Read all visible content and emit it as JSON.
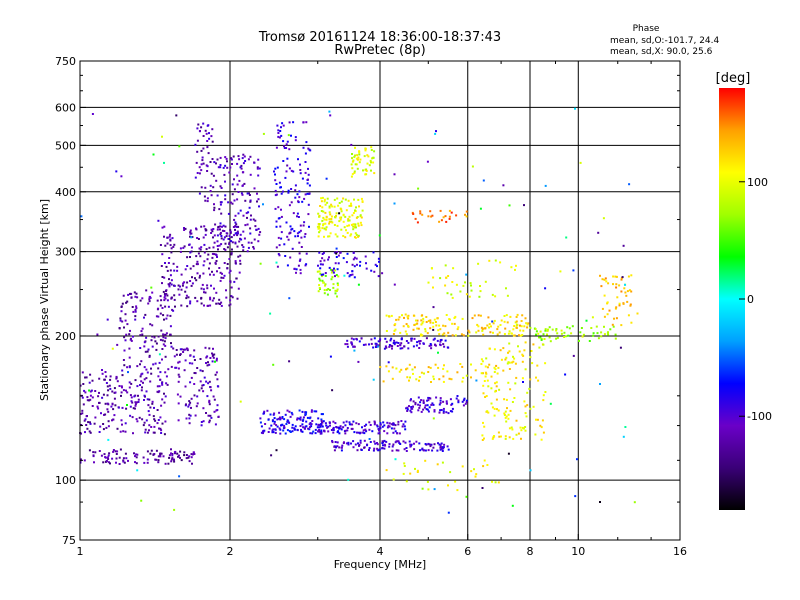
{
  "chart_data": {
    "type": "scatter",
    "title": "Tromsø 20161124 18:36:00-18:37:43",
    "subtitle": "RwPretec (8p)",
    "xlabel": "Frequency [MHz]",
    "ylabel": "Stationary phase Virtual Height [km]",
    "x_scale": "log",
    "y_scale": "log",
    "xlim": [
      1,
      16
    ],
    "ylim": [
      75,
      750
    ],
    "x_ticks": [
      1,
      2,
      4,
      6,
      8,
      10,
      16
    ],
    "x_tick_labels": [
      "1",
      "2",
      "4",
      "6",
      "8",
      "10",
      "16"
    ],
    "y_ticks": [
      75,
      100,
      200,
      300,
      400,
      500,
      600,
      750
    ],
    "y_tick_labels": [
      "75",
      "100",
      "200",
      "300",
      "400",
      "500",
      "600",
      "750"
    ],
    "grid": true,
    "stats": {
      "title": "Phase",
      "line1": "mean, sd,O:-101.7, 24.4",
      "line2": "mean, sd,X:  90.0, 25.6"
    },
    "colorbar": {
      "label": "[deg]",
      "range": [
        -180,
        180
      ],
      "ticks": [
        100,
        0,
        -100
      ],
      "tick_labels": [
        "100",
        "0",
        "-100"
      ],
      "colors": [
        "#000000",
        "#3a0078",
        "#6a00c8",
        "#0000ff",
        "#00a0ff",
        "#00ffff",
        "#00ff00",
        "#a0ff00",
        "#ffff00",
        "#ffa000",
        "#ff0000"
      ]
    },
    "clusters": [
      {
        "x0": 1.0,
        "x1": 1.7,
        "y0": 108,
        "y1": 116,
        "phase": -125,
        "count": 110
      },
      {
        "x0": 1.0,
        "x1": 1.5,
        "y0": 125,
        "y1": 170,
        "phase": -118,
        "count": 220
      },
      {
        "x0": 1.2,
        "x1": 1.55,
        "y0": 170,
        "y1": 250,
        "phase": -120,
        "count": 140
      },
      {
        "x0": 1.45,
        "x1": 2.1,
        "y0": 230,
        "y1": 340,
        "phase": -120,
        "count": 260
      },
      {
        "x0": 1.55,
        "x1": 1.9,
        "y0": 130,
        "y1": 190,
        "phase": -115,
        "count": 120
      },
      {
        "x0": 1.7,
        "x1": 1.85,
        "y0": 380,
        "y1": 560,
        "phase": -115,
        "count": 50
      },
      {
        "x0": 1.85,
        "x1": 2.3,
        "y0": 300,
        "y1": 480,
        "phase": -110,
        "count": 160
      },
      {
        "x0": 2.45,
        "x1": 2.9,
        "y0": 270,
        "y1": 560,
        "phase": -95,
        "count": 150
      },
      {
        "x0": 2.3,
        "x1": 3.1,
        "y0": 125,
        "y1": 140,
        "phase": -85,
        "count": 140
      },
      {
        "x0": 3.0,
        "x1": 4.5,
        "y0": 125,
        "y1": 133,
        "phase": -95,
        "count": 120
      },
      {
        "x0": 3.2,
        "x1": 5.5,
        "y0": 115,
        "y1": 121,
        "phase": -100,
        "count": 120
      },
      {
        "x0": 3.0,
        "x1": 3.7,
        "y0": 320,
        "y1": 390,
        "phase": 100,
        "count": 140
      },
      {
        "x0": 3.5,
        "x1": 3.9,
        "y0": 430,
        "y1": 500,
        "phase": 95,
        "count": 50
      },
      {
        "x0": 3.0,
        "x1": 3.3,
        "y0": 240,
        "y1": 275,
        "phase": 75,
        "count": 40
      },
      {
        "x0": 3.0,
        "x1": 4.0,
        "y0": 265,
        "y1": 300,
        "phase": -90,
        "count": 60
      },
      {
        "x0": 3.4,
        "x1": 5.5,
        "y0": 188,
        "y1": 198,
        "phase": -100,
        "count": 100
      },
      {
        "x0": 4.1,
        "x1": 8.0,
        "y0": 200,
        "y1": 222,
        "phase": 120,
        "count": 160
      },
      {
        "x0": 4.5,
        "x1": 6.0,
        "y0": 138,
        "y1": 150,
        "phase": -95,
        "count": 80
      },
      {
        "x0": 6.4,
        "x1": 8.6,
        "y0": 120,
        "y1": 195,
        "phase": 110,
        "count": 140
      },
      {
        "x0": 8.0,
        "x1": 12.0,
        "y0": 195,
        "y1": 210,
        "phase": 75,
        "count": 60
      },
      {
        "x0": 11.0,
        "x1": 13.2,
        "y0": 210,
        "y1": 270,
        "phase": 130,
        "count": 50
      },
      {
        "x0": 4.5,
        "x1": 6.0,
        "y0": 345,
        "y1": 365,
        "phase": 150,
        "count": 25
      },
      {
        "x0": 4.0,
        "x1": 7.0,
        "y0": 160,
        "y1": 175,
        "phase": 115,
        "count": 60
      },
      {
        "x0": 4.0,
        "x1": 7.0,
        "y0": 95,
        "y1": 110,
        "phase": 105,
        "count": 30
      },
      {
        "x0": 5.0,
        "x1": 7.5,
        "y0": 240,
        "y1": 290,
        "phase": 95,
        "count": 40
      },
      {
        "x0": 1.0,
        "x1": 13.0,
        "y0": 85,
        "y1": 600,
        "phase": -40,
        "count": 120
      }
    ]
  }
}
